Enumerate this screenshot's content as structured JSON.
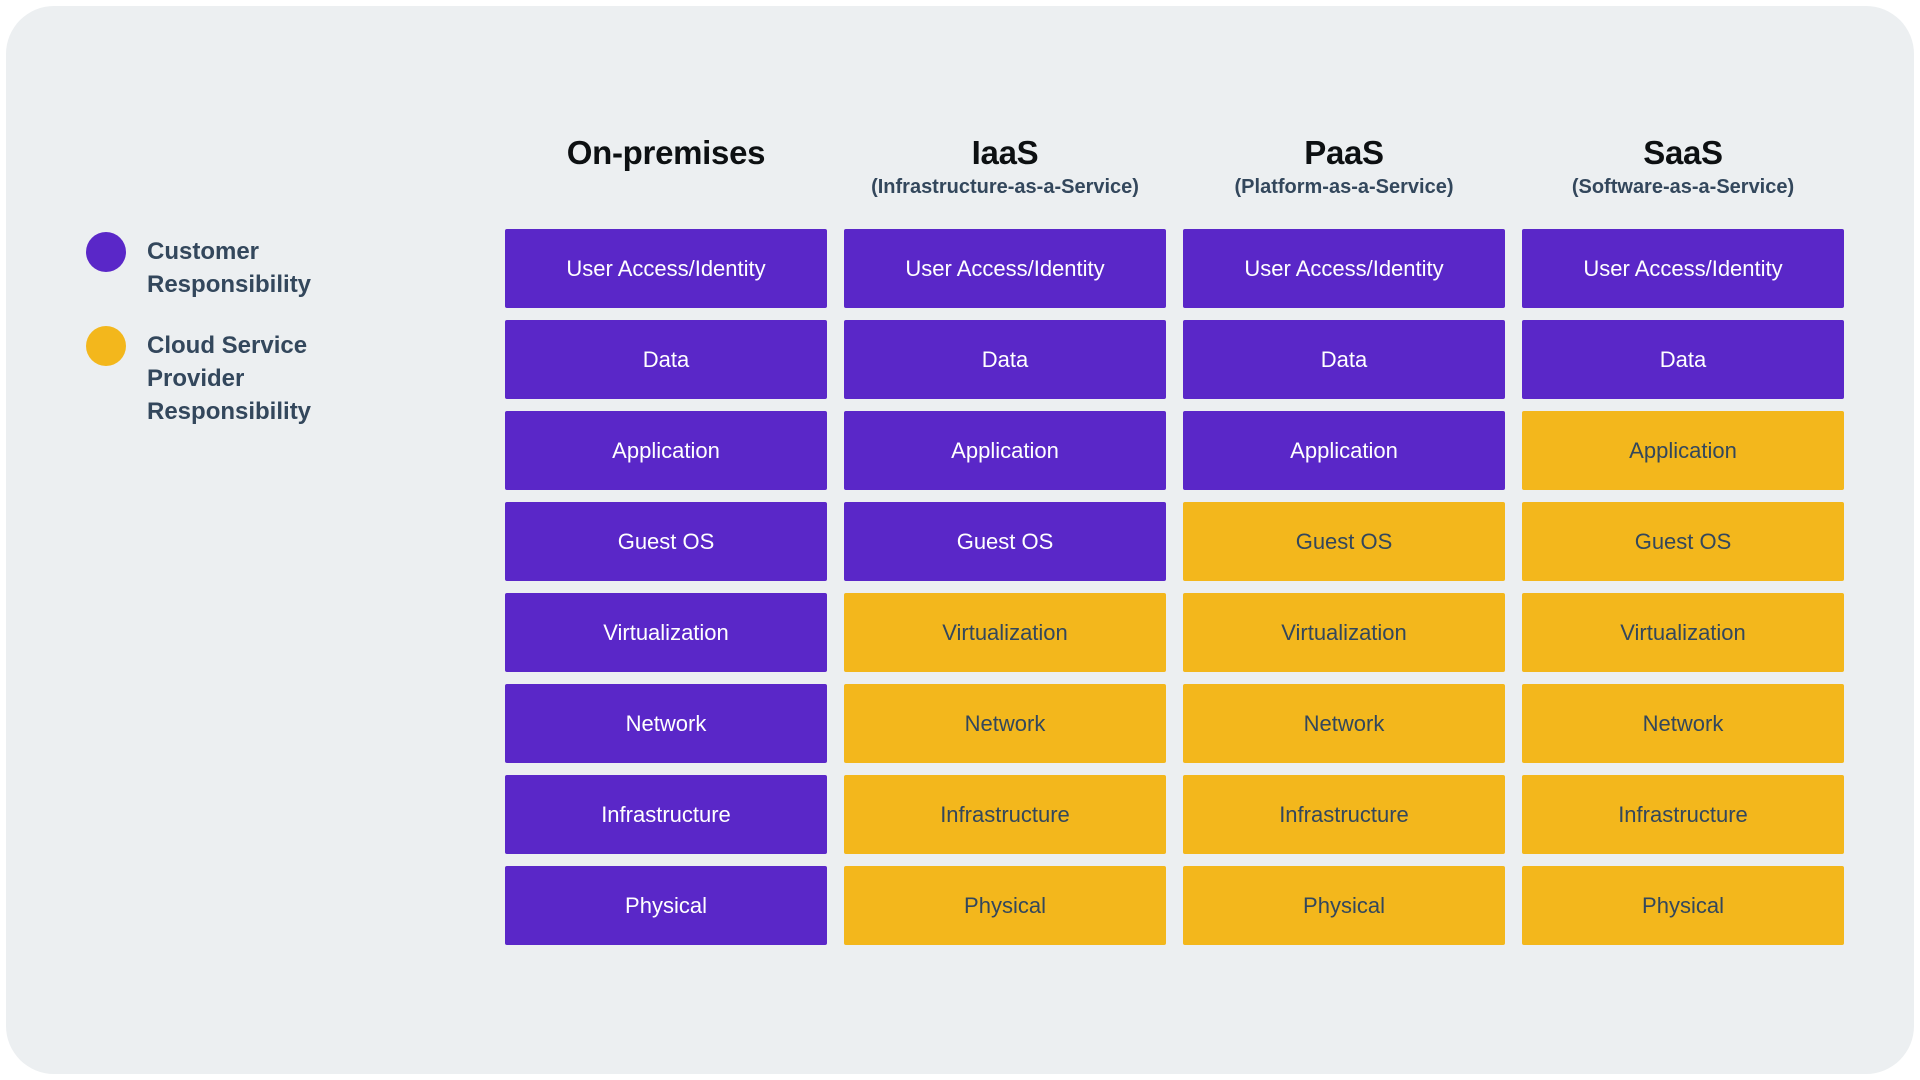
{
  "page": {
    "outer_background": "#FFFFFF",
    "canvas_background": "#ECEFF1"
  },
  "colors": {
    "customer": "#5A27C8",
    "provider": "#F3B71C",
    "text_on_customer": "#FFFFFF",
    "text_on_provider": "#33475C",
    "heading_text": "#0D1012",
    "subtitle_text": "#33475C",
    "legend_text": "#33475C"
  },
  "legend": {
    "items": [
      {
        "key": "customer",
        "label": "Customer Responsibility",
        "color": "#5A27C8"
      },
      {
        "key": "provider",
        "label": "Cloud Service Provider Responsibility",
        "color": "#F3B71C"
      }
    ]
  },
  "rows": [
    "User Access/Identity",
    "Data",
    "Application",
    "Guest OS",
    "Virtualization",
    "Network",
    "Infrastructure",
    "Physical"
  ],
  "columns": [
    {
      "title": "On-premises",
      "subtitle": "",
      "cells": [
        "customer",
        "customer",
        "customer",
        "customer",
        "customer",
        "customer",
        "customer",
        "customer"
      ]
    },
    {
      "title": "IaaS",
      "subtitle": "(Infrastructure-as-a-Service)",
      "cells": [
        "customer",
        "customer",
        "customer",
        "customer",
        "provider",
        "provider",
        "provider",
        "provider"
      ]
    },
    {
      "title": "PaaS",
      "subtitle": "(Platform-as-a-Service)",
      "cells": [
        "customer",
        "customer",
        "customer",
        "provider",
        "provider",
        "provider",
        "provider",
        "provider"
      ]
    },
    {
      "title": "SaaS",
      "subtitle": "(Software-as-a-Service)",
      "cells": [
        "customer",
        "customer",
        "provider",
        "provider",
        "provider",
        "provider",
        "provider",
        "provider"
      ]
    }
  ]
}
